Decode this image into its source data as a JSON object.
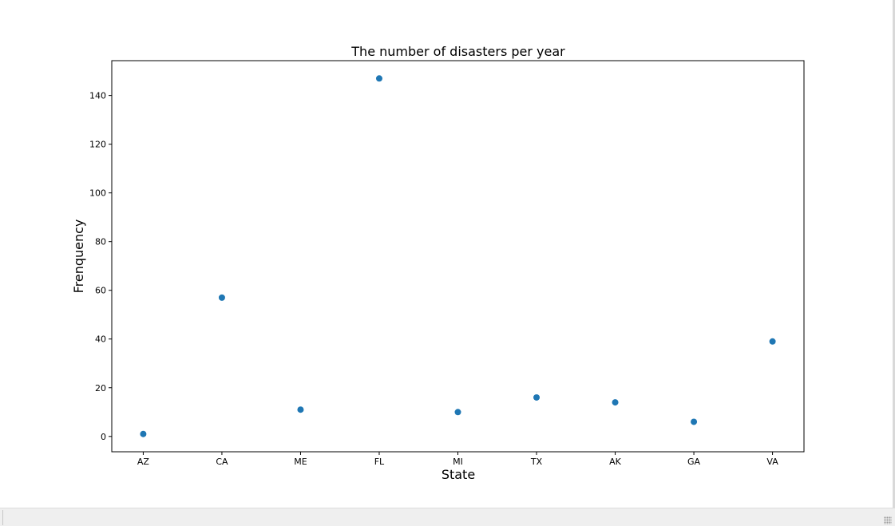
{
  "chart_data": {
    "type": "scatter",
    "title": "The number of disasters per year",
    "xlabel": "State",
    "ylabel": "Frenquency",
    "categories": [
      "AZ",
      "CA",
      "ME",
      "FL",
      "MI",
      "TX",
      "AK",
      "GA",
      "VA"
    ],
    "values": [
      1,
      57,
      11,
      147,
      10,
      16,
      14,
      6,
      39
    ],
    "ylim": [
      -6.3,
      154.3
    ],
    "yticks": [
      0,
      20,
      40,
      60,
      80,
      100,
      120,
      140
    ],
    "grid": false,
    "marker_color": "#1f77b4"
  }
}
